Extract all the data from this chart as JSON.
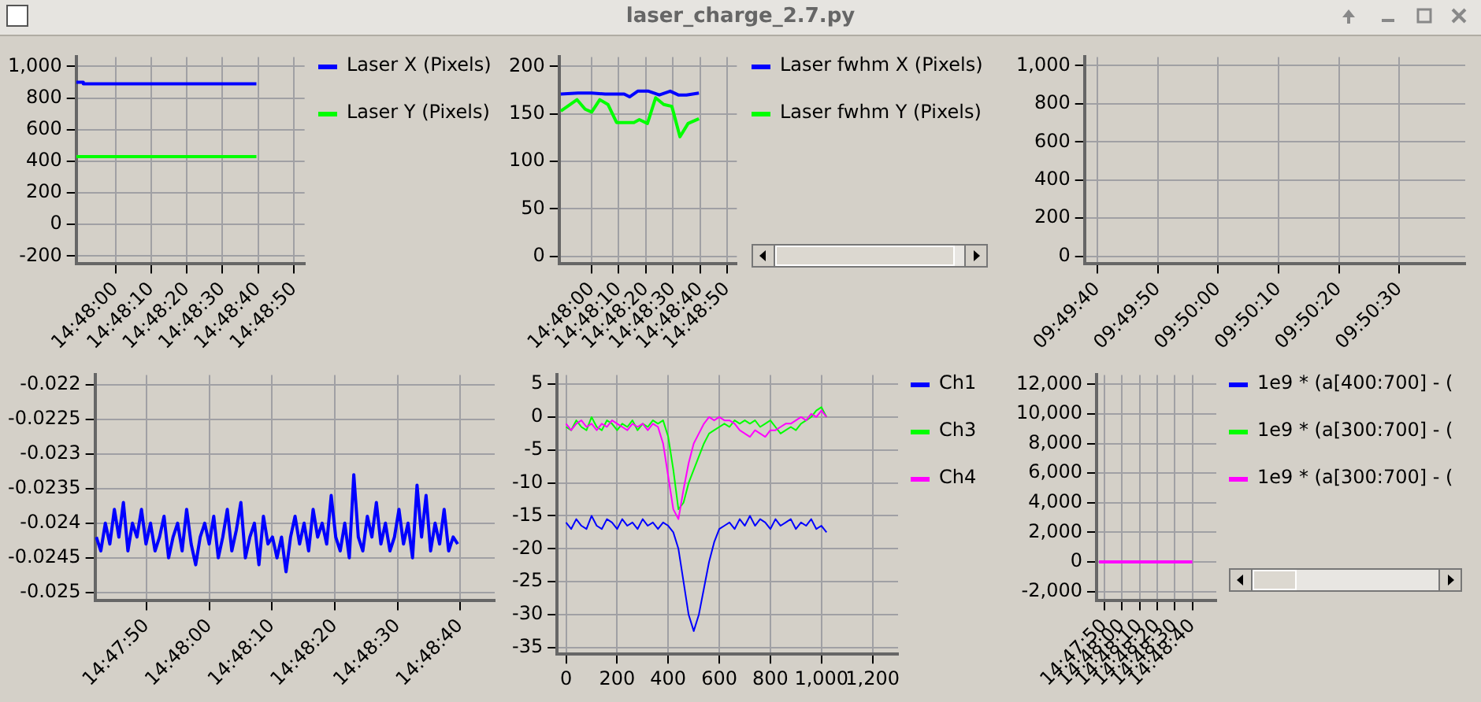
{
  "chart_data": [
    {
      "type": "other",
      "title": "laser_charge_2.7.py"
    },
    {
      "type": "line",
      "grid": true,
      "legend": "right",
      "xlim": [
        14.796944,
        14.814722
      ],
      "xticks": [
        {
          "value": 14.8,
          "label": "14:48:00"
        },
        {
          "value": 14.802778,
          "label": "14:48:10"
        },
        {
          "value": 14.805556,
          "label": "14:48:20"
        },
        {
          "value": 14.808333,
          "label": "14:48:30"
        },
        {
          "value": 14.811111,
          "label": "14:48:40"
        },
        {
          "value": 14.813889,
          "label": "14:48:50"
        }
      ],
      "ylim": [
        -250,
        1060
      ],
      "yticks": [
        -200,
        0,
        200,
        400,
        600,
        800,
        {
          "value": 1000,
          "label": "1,000"
        }
      ],
      "series": [
        {
          "name": "Laser X (Pixels)",
          "color": "#0000ff",
          "x": [
            14.796944,
            14.7975,
            14.7975,
            14.810972
          ],
          "values": [
            900,
            900,
            890,
            890
          ]
        },
        {
          "name": "Laser Y (Pixels)",
          "color": "#00ff00",
          "x": [
            14.796944,
            14.810972
          ],
          "values": [
            430,
            430
          ]
        }
      ]
    },
    {
      "type": "line",
      "grid": true,
      "legend": "right",
      "xlim": [
        14.796667,
        14.814889
      ],
      "xticks": [
        {
          "value": 14.8,
          "label": "14:48:00"
        },
        {
          "value": 14.802778,
          "label": "14:48:10"
        },
        {
          "value": 14.805556,
          "label": "14:48:20"
        },
        {
          "value": 14.808333,
          "label": "14:48:30"
        },
        {
          "value": 14.811111,
          "label": "14:48:40"
        },
        {
          "value": 14.813889,
          "label": "14:48:50"
        }
      ],
      "ylim": [
        -8,
        210
      ],
      "yticks": [
        0,
        50,
        100,
        150,
        200
      ],
      "series": [
        {
          "name": "Laser fwhm X (Pixels)",
          "color": "#0000ff",
          "x": [
            14.796833,
            14.798611,
            14.8,
            14.801389,
            14.803333,
            14.803889,
            14.804722,
            14.805833,
            14.806944,
            14.808056,
            14.808889,
            14.809722,
            14.811
          ],
          "values": [
            171,
            172,
            172,
            171,
            171,
            168,
            174,
            174,
            170,
            174,
            170,
            170,
            172
          ]
        },
        {
          "name": "Laser fwhm Y (Pixels)",
          "color": "#00ff00",
          "x": [
            14.796833,
            14.7985,
            14.799333,
            14.8,
            14.800833,
            14.801667,
            14.802556,
            14.804333,
            14.804889,
            14.805722,
            14.806556,
            14.807389,
            14.808222,
            14.809056,
            14.809889,
            14.811
          ],
          "values": [
            153,
            165,
            155,
            152,
            165,
            160,
            141,
            141,
            144,
            140,
            167,
            160,
            158,
            126,
            140,
            145
          ]
        }
      ]
    },
    {
      "type": "line",
      "grid": true,
      "xlim": [
        9.827194,
        9.844694
      ],
      "xticks": [
        {
          "value": 9.827778,
          "label": "09:49:40"
        },
        {
          "value": 9.830556,
          "label": "09:49:50"
        },
        {
          "value": 9.833333,
          "label": "09:50:00"
        },
        {
          "value": 9.836111,
          "label": "09:50:10"
        },
        {
          "value": 9.838889,
          "label": "09:50:20"
        },
        {
          "value": 9.841667,
          "label": "09:50:30"
        }
      ],
      "ylim": [
        -40,
        1045
      ],
      "yticks": [
        0,
        200,
        400,
        600,
        800,
        {
          "value": 1000,
          "label": "1,000"
        }
      ]
    },
    {
      "type": "line",
      "grid": true,
      "xlim": [
        14.794944,
        14.812639
      ],
      "xticks": [
        {
          "value": 14.797222,
          "label": "14:47:50"
        },
        {
          "value": 14.8,
          "label": "14:48:00"
        },
        {
          "value": 14.802778,
          "label": "14:48:10"
        },
        {
          "value": 14.805556,
          "label": "14:48:20"
        },
        {
          "value": 14.808333,
          "label": "14:48:30"
        },
        {
          "value": 14.811111,
          "label": "14:48:40"
        }
      ],
      "ylim": [
        -0.02512,
        -0.02186
      ],
      "yticks": [
        -0.022,
        -0.0225,
        -0.023,
        -0.0235,
        -0.024,
        -0.0245,
        -0.025
      ],
      "x": [
        14.795,
        14.7952,
        14.7954,
        14.7956,
        14.7958,
        14.796,
        14.7962,
        14.7964,
        14.7966,
        14.7968,
        14.797,
        14.7972,
        14.7974,
        14.7976,
        14.7978,
        14.798,
        14.7982,
        14.7984,
        14.7986,
        14.7988,
        14.799,
        14.7992,
        14.7994,
        14.7996,
        14.7998,
        14.8,
        14.8002,
        14.8004,
        14.8006,
        14.8008,
        14.801,
        14.8012,
        14.8014,
        14.8016,
        14.8018,
        14.802,
        14.8022,
        14.8024,
        14.8026,
        14.8028,
        14.803,
        14.8032,
        14.8034,
        14.8036,
        14.8038,
        14.804,
        14.8042,
        14.8044,
        14.8046,
        14.8048,
        14.805,
        14.8052,
        14.8054,
        14.8056,
        14.8058,
        14.806,
        14.8062,
        14.8064,
        14.8066,
        14.8068,
        14.807,
        14.8072,
        14.8074,
        14.8076,
        14.8078,
        14.808,
        14.8082,
        14.8084,
        14.8086,
        14.8088,
        14.809,
        14.8092,
        14.8094,
        14.8096,
        14.8098,
        14.81,
        14.8102,
        14.8104,
        14.8106,
        14.8108,
        14.811
      ],
      "series": [
        {
          "color": "#0000ff",
          "values": [
            -0.0242,
            -0.0244,
            -0.024,
            -0.0243,
            -0.0238,
            -0.0242,
            -0.0237,
            -0.0244,
            -0.024,
            -0.0242,
            -0.0238,
            -0.0243,
            -0.024,
            -0.0244,
            -0.0242,
            -0.0239,
            -0.0245,
            -0.0242,
            -0.024,
            -0.0244,
            -0.0238,
            -0.0243,
            -0.0246,
            -0.0242,
            -0.024,
            -0.0243,
            -0.0239,
            -0.0245,
            -0.0242,
            -0.0238,
            -0.0244,
            -0.0241,
            -0.0237,
            -0.0245,
            -0.0242,
            -0.024,
            -0.0246,
            -0.0239,
            -0.0243,
            -0.0242,
            -0.0245,
            -0.0242,
            -0.0247,
            -0.0242,
            -0.0239,
            -0.0243,
            -0.024,
            -0.0244,
            -0.0238,
            -0.0242,
            -0.024,
            -0.0243,
            -0.0236,
            -0.0242,
            -0.0244,
            -0.024,
            -0.0245,
            -0.0233,
            -0.0242,
            -0.0244,
            -0.0239,
            -0.0242,
            -0.0237,
            -0.0243,
            -0.024,
            -0.0244,
            -0.0242,
            -0.0238,
            -0.0243,
            -0.024,
            -0.0245,
            -0.02345,
            -0.0242,
            -0.0236,
            -0.0244,
            -0.024,
            -0.0243,
            -0.0238,
            -0.0244,
            -0.0242,
            -0.0243
          ]
        }
      ]
    },
    {
      "type": "line",
      "grid": true,
      "legend": "right",
      "xlim": [
        -35,
        1300
      ],
      "xticks": [
        0,
        200,
        400,
        600,
        800,
        {
          "value": 1000,
          "label": "1,000"
        },
        {
          "value": 1200,
          "label": "1,200"
        }
      ],
      "ylim": [
        -36,
        6.4
      ],
      "yticks": [
        -35,
        -30,
        -25,
        -20,
        -15,
        -10,
        -5,
        0,
        5
      ],
      "x": [
        0,
        20,
        40,
        60,
        80,
        100,
        120,
        140,
        160,
        180,
        200,
        220,
        240,
        260,
        280,
        300,
        320,
        340,
        360,
        380,
        400,
        420,
        440,
        460,
        480,
        500,
        520,
        540,
        560,
        580,
        600,
        620,
        640,
        660,
        680,
        700,
        720,
        740,
        760,
        780,
        800,
        820,
        840,
        860,
        880,
        900,
        920,
        940,
        960,
        980,
        1000,
        1020
      ],
      "series": [
        {
          "name": "Ch1",
          "color": "#0000ff",
          "values": [
            -16,
            -17,
            -15.5,
            -16.5,
            -17,
            -15,
            -16.5,
            -17,
            -15.5,
            -16,
            -17,
            -15.5,
            -16.5,
            -16,
            -17,
            -15.5,
            -16.5,
            -16,
            -17,
            -16,
            -16.5,
            -17.5,
            -20,
            -25,
            -30,
            -32.5,
            -30,
            -26,
            -22,
            -19,
            -17,
            -16.5,
            -16,
            -17,
            -15.5,
            -16.5,
            -15,
            -16.5,
            -15.5,
            -16,
            -17,
            -15.5,
            -16.5,
            -16,
            -15.5,
            -17,
            -16,
            -16.5,
            -15.5,
            -17,
            -16.5,
            -17.5
          ]
        },
        {
          "name": "Ch3",
          "color": "#00ff00",
          "values": [
            -1.5,
            -2,
            -0.5,
            -1.5,
            -2,
            0,
            -1.5,
            -2,
            -0.5,
            -1,
            -2,
            -1,
            -1.5,
            -0.5,
            -2,
            -1,
            -1.5,
            -0.5,
            -1,
            -0.5,
            -3,
            -8,
            -14,
            -13,
            -10,
            -8,
            -6,
            -4,
            -2.5,
            -2,
            -1.5,
            -1,
            -1.5,
            -0.5,
            -1,
            -0.5,
            -1,
            -0.5,
            -1.5,
            -1,
            -0.5,
            -1.5,
            -2.5,
            -2,
            -1.5,
            -2,
            -1,
            -0.5,
            0,
            1,
            1.5,
            0
          ]
        },
        {
          "name": "Ch4",
          "color": "#ff00ff",
          "values": [
            -1,
            -2,
            -1,
            -0.5,
            -1.5,
            -1,
            -2,
            -1,
            -1.5,
            -0.5,
            -1,
            -1.5,
            -2,
            -1,
            -1.5,
            -1,
            -2,
            -1,
            -1.5,
            -4,
            -9,
            -14,
            -15.5,
            -11,
            -7,
            -4,
            -2.5,
            -1,
            0,
            -0.5,
            0,
            -0.5,
            -0.5,
            -1,
            -2,
            -2.5,
            -3,
            -2,
            -2.5,
            -3,
            -2,
            -2,
            -1.5,
            -1,
            -1,
            -0.5,
            0,
            -0.5,
            0.5,
            0,
            1,
            0
          ]
        }
      ]
    },
    {
      "type": "line",
      "grid": true,
      "legend": "right",
      "xlim": [
        14.796,
        14.814889
      ],
      "xticks": [
        {
          "value": 14.797222,
          "label": "14:47:50"
        },
        {
          "value": 14.8,
          "label": "14:48:00"
        },
        {
          "value": 14.802778,
          "label": "14:48:10"
        },
        {
          "value": 14.805556,
          "label": "14:48:20"
        },
        {
          "value": 14.808333,
          "label": "14:48:30"
        },
        {
          "value": 14.811111,
          "label": "14:48:40"
        }
      ],
      "ylim": [
        -2633,
        12633
      ],
      "yticks": [
        {
          "value": -2000,
          "label": "-2,000"
        },
        0,
        {
          "value": 2000,
          "label": "2,000"
        },
        {
          "value": 4000,
          "label": "4,000"
        },
        {
          "value": 6000,
          "label": "6,000"
        },
        {
          "value": 8000,
          "label": "8,000"
        },
        {
          "value": 10000,
          "label": "10,000"
        },
        {
          "value": 12000,
          "label": "12,000"
        }
      ],
      "x": [
        14.796389,
        14.811111
      ],
      "series": [
        {
          "name": "1e9 * (a[400:700] - (",
          "color": "#0000ff",
          "values": [
            null,
            null
          ]
        },
        {
          "name": "1e9 * (a[300:700] - (",
          "color": "#00ff00",
          "values": [
            null,
            null
          ]
        },
        {
          "name": "1e9 * (a[300:700] - (",
          "color": "#ff00ff",
          "values": [
            0,
            0
          ]
        }
      ]
    }
  ]
}
